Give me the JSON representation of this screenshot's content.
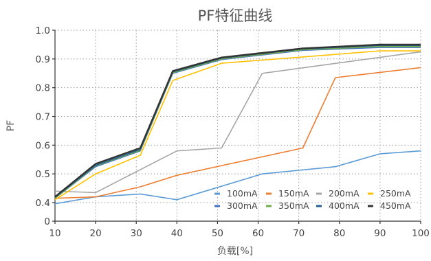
{
  "chart_data": {
    "type": "line",
    "title": "PF特征曲线",
    "xlabel": "负载[%]",
    "ylabel": "PF",
    "xlim": [
      10,
      100
    ],
    "x_ticks": [
      10,
      20,
      30,
      40,
      50,
      60,
      70,
      80,
      90,
      100
    ],
    "y_ticks": [
      {
        "value": 0,
        "label": "0"
      },
      {
        "value": 0.4,
        "label": "0.4"
      },
      {
        "value": 0.5,
        "label": "0.5"
      },
      {
        "value": 0.6,
        "label": "0.6"
      },
      {
        "value": 0.7,
        "label": "0.7"
      },
      {
        "value": 0.8,
        "label": "0.8"
      },
      {
        "value": 0.9,
        "label": "0.9"
      },
      {
        "value": 1.0,
        "label": "1.0"
      }
    ],
    "y_axis_break": "between 0 and 0.4",
    "grid": true,
    "legend_position": "bottom-right",
    "series": [
      {
        "name": "100mA",
        "color": "#5b9bd5",
        "points": [
          [
            10,
            0.375
          ],
          [
            20,
            0.42
          ],
          [
            31,
            0.43
          ],
          [
            40,
            0.41
          ],
          [
            61,
            0.5
          ],
          [
            79,
            0.525
          ],
          [
            90,
            0.57
          ],
          [
            100,
            0.58
          ]
        ]
      },
      {
        "name": "150mA",
        "color": "#ed7d31",
        "points": [
          [
            10,
            0.415
          ],
          [
            20,
            0.42
          ],
          [
            31,
            0.455
          ],
          [
            40,
            0.495
          ],
          [
            71,
            0.59
          ],
          [
            79,
            0.835
          ],
          [
            100,
            0.87
          ]
        ]
      },
      {
        "name": "200mA",
        "color": "#a5a5a5",
        "points": [
          [
            10,
            0.44
          ],
          [
            20,
            0.435
          ],
          [
            40,
            0.58
          ],
          [
            51,
            0.59
          ],
          [
            61,
            0.85
          ],
          [
            100,
            0.925
          ]
        ]
      },
      {
        "name": "250mA",
        "color": "#ffc000",
        "points": [
          [
            10,
            0.41
          ],
          [
            20,
            0.5
          ],
          [
            31,
            0.565
          ],
          [
            39,
            0.825
          ],
          [
            51,
            0.885
          ],
          [
            90,
            0.928
          ],
          [
            100,
            0.928
          ]
        ]
      },
      {
        "name": "300mA",
        "color": "#4472c4",
        "points": [
          [
            10,
            0.415
          ],
          [
            20,
            0.525
          ],
          [
            31,
            0.58
          ],
          [
            39,
            0.85
          ],
          [
            51,
            0.898
          ],
          [
            71,
            0.93
          ],
          [
            90,
            0.94
          ],
          [
            100,
            0.94
          ]
        ]
      },
      {
        "name": "350mA",
        "color": "#70ad47",
        "points": [
          [
            10,
            0.415
          ],
          [
            20,
            0.528
          ],
          [
            31,
            0.582
          ],
          [
            39,
            0.852
          ],
          [
            51,
            0.9
          ],
          [
            71,
            0.932
          ],
          [
            90,
            0.943
          ],
          [
            100,
            0.943
          ]
        ]
      },
      {
        "name": "400mA",
        "color": "#255e91",
        "points": [
          [
            10,
            0.418
          ],
          [
            20,
            0.53
          ],
          [
            31,
            0.585
          ],
          [
            39,
            0.855
          ],
          [
            51,
            0.903
          ],
          [
            71,
            0.935
          ],
          [
            90,
            0.947
          ],
          [
            100,
            0.947
          ]
        ]
      },
      {
        "name": "450mA",
        "color": "#333333",
        "points": [
          [
            10,
            0.42
          ],
          [
            20,
            0.535
          ],
          [
            31,
            0.59
          ],
          [
            39,
            0.858
          ],
          [
            51,
            0.905
          ],
          [
            71,
            0.937
          ],
          [
            90,
            0.95
          ],
          [
            100,
            0.95
          ]
        ]
      }
    ]
  }
}
